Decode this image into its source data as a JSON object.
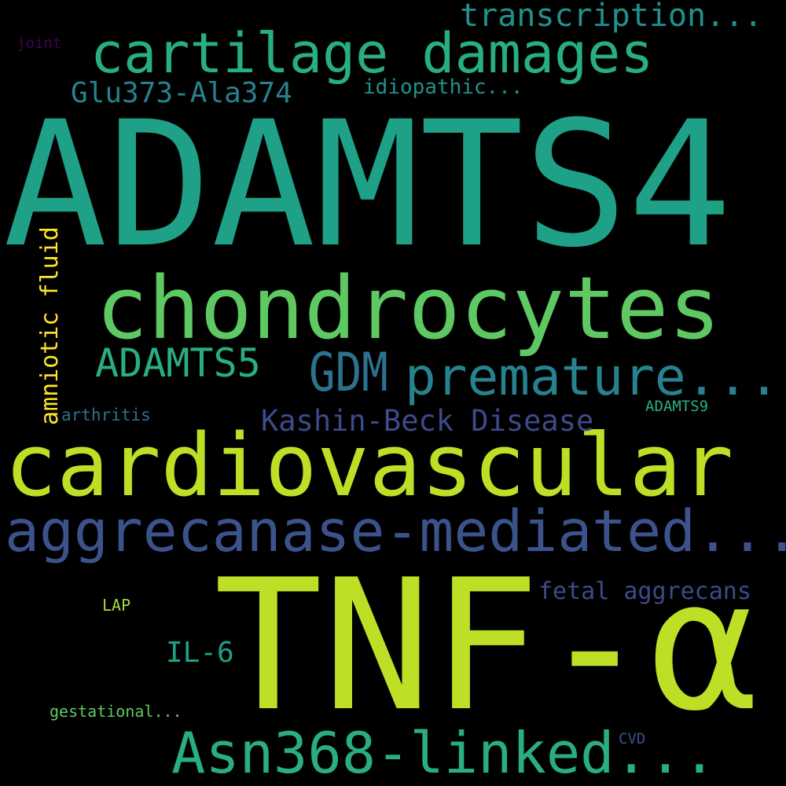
{
  "word_cloud": {
    "background_color": "#000000",
    "words": [
      {
        "text": "ADAMTS4",
        "color": "#1fa187"
      },
      {
        "text": "TNF-α",
        "color": "#bddf26"
      },
      {
        "text": "cardiovascular",
        "color": "#bddf26"
      },
      {
        "text": "chondrocytes",
        "color": "#5ec962"
      },
      {
        "text": "cartilage damages",
        "color": "#29af7f"
      },
      {
        "text": "aggrecanase-mediated...",
        "color": "#3b528b"
      },
      {
        "text": "Asn368-linked...",
        "color": "#29af7f"
      },
      {
        "text": "premature...",
        "color": "#26828e"
      },
      {
        "text": "GDM",
        "color": "#2c728e"
      },
      {
        "text": "ADAMTS5",
        "color": "#29af7f"
      },
      {
        "text": "transcription...",
        "color": "#21918c"
      },
      {
        "text": "Kashin-Beck Disease",
        "color": "#3e4a89"
      },
      {
        "text": "Glu373-Ala374",
        "color": "#26828e"
      },
      {
        "text": "idiopathic...",
        "color": "#21918c"
      },
      {
        "text": "amniotic fluid",
        "color": "#fde725"
      },
      {
        "text": "IL-6",
        "color": "#1fa187"
      },
      {
        "text": "fetal aggrecans",
        "color": "#3e4a89"
      },
      {
        "text": "arthritis",
        "color": "#2c728e"
      },
      {
        "text": "ADAMTS9",
        "color": "#29af7f"
      },
      {
        "text": "LAP",
        "color": "#a0da39"
      },
      {
        "text": "gestational...",
        "color": "#5ec962"
      },
      {
        "text": "joint",
        "color": "#440154"
      },
      {
        "text": "CVD",
        "color": "#3b528b"
      }
    ]
  }
}
